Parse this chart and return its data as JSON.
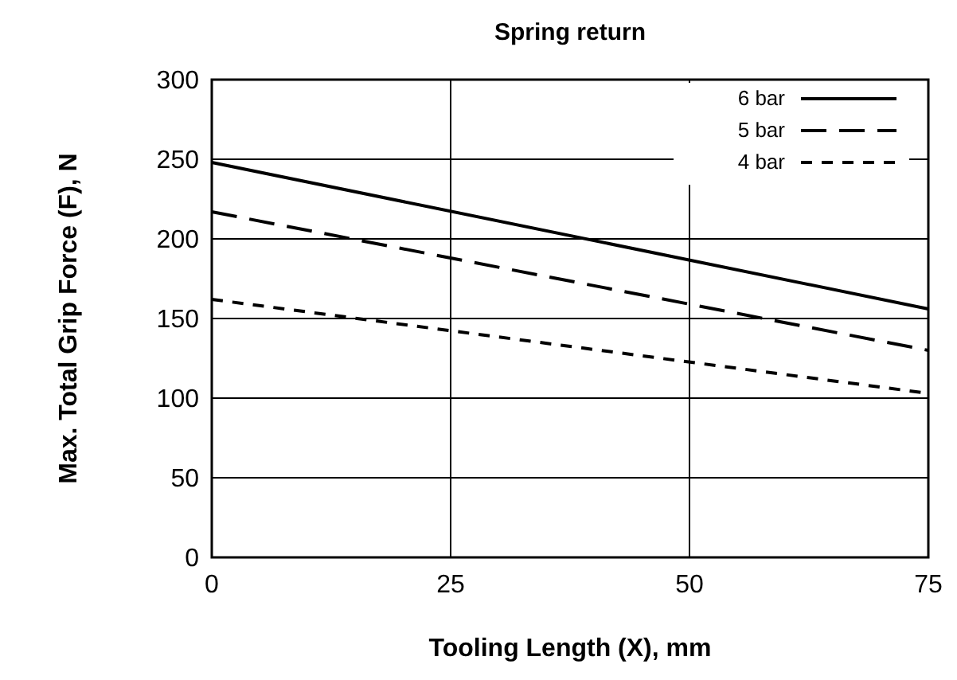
{
  "chart_data": {
    "type": "line",
    "title": "Spring return",
    "xlabel": "Tooling Length (X), mm",
    "ylabel": "Max. Total Grip Force (F), N",
    "x": [
      0,
      75
    ],
    "series": [
      {
        "name": "6 bar",
        "color": "#000000",
        "values": [
          248,
          156
        ],
        "line_style": "solid"
      },
      {
        "name": "5 bar",
        "color": "#000000",
        "values": [
          217,
          130
        ],
        "line_style": "dashed"
      },
      {
        "name": "4 bar",
        "color": "#000000",
        "values": [
          162,
          103
        ],
        "line_style": "dotted"
      }
    ],
    "xlim": [
      0,
      75
    ],
    "xticks": [
      0,
      25,
      50,
      75
    ],
    "ylim": [
      0,
      300
    ],
    "yticks": [
      0,
      50,
      100,
      150,
      200,
      250,
      300
    ],
    "grid": true,
    "legend": "top right",
    "marker": "none"
  }
}
